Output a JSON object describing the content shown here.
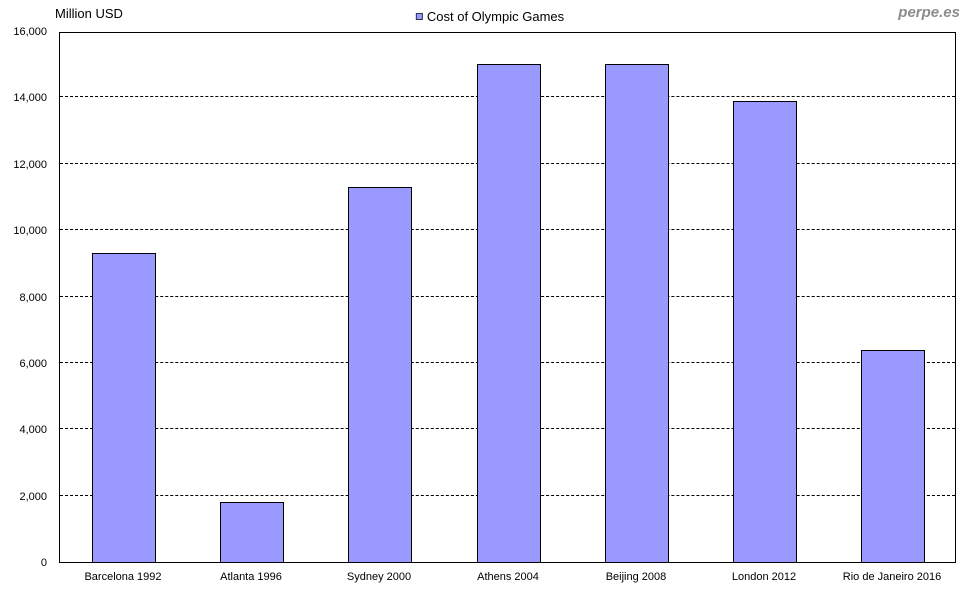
{
  "header": {
    "axis_title": "Million USD",
    "legend_label": "Cost of Olympic Games",
    "watermark": "perpe.es"
  },
  "colors": {
    "bar_fill": "#9999FF",
    "bar_border": "#000000",
    "gridline": "#000000",
    "text": "#000000",
    "watermark": "#8C8C8C"
  },
  "chart_data": {
    "type": "bar",
    "title": "Cost of Olympic Games",
    "ylabel": "Million USD",
    "categories": [
      "Barcelona 1992",
      "Atlanta 1996",
      "Sydney 2000",
      "Athens 2004",
      "Beijing 2008",
      "London 2012",
      "Rio de Janeiro 2016"
    ],
    "values": [
      9300,
      1800,
      11300,
      15000,
      15000,
      13900,
      6400
    ],
    "ylim": [
      0,
      16000
    ],
    "ytick_step": 2000,
    "ytick_labels": [
      "0",
      "2,000",
      "4,000",
      "6,000",
      "8,000",
      "10,000",
      "12,000",
      "14,000",
      "16,000"
    ],
    "grid": "horizontal-dashed",
    "legend_position": "top-center",
    "legend_entries": [
      "Cost of Olympic Games"
    ],
    "watermark": "perpe.es"
  }
}
